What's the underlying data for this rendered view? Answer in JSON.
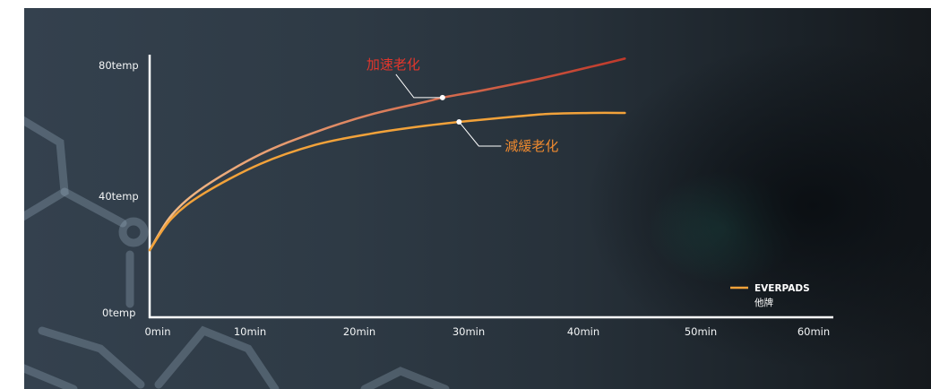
{
  "chart_data": {
    "type": "line",
    "x_ticks": [
      "0min",
      "10min",
      "20min",
      "30min",
      "40min",
      "50min",
      "60min"
    ],
    "y_ticks": [
      "0temp",
      "40temp",
      "80temp"
    ],
    "xlim": [
      0,
      60
    ],
    "ylim": [
      0,
      80
    ],
    "series": [
      {
        "name": "EVERPADS",
        "color": "#f2a23a",
        "x": [
          0,
          2,
          5,
          10,
          15,
          20,
          25,
          28,
          32,
          36,
          40,
          43
        ],
        "y": [
          21,
          31,
          39,
          48,
          54,
          57.5,
          60,
          61.2,
          62.5,
          63.7,
          64,
          64
        ]
      },
      {
        "name": "他牌",
        "color": "#c8473a",
        "x": [
          0,
          2,
          5,
          10,
          15,
          20,
          25,
          26.5,
          30,
          35,
          40,
          43
        ],
        "y": [
          21,
          32,
          41,
          51,
          58,
          63.5,
          67.5,
          68.8,
          71,
          74.5,
          78.5,
          81
        ]
      }
    ],
    "annotations": [
      {
        "text": "加速老化",
        "color": "#e2362c",
        "x": 26.5,
        "y": 68.8
      },
      {
        "text": "減緩老化",
        "color": "#ef8a2f",
        "x": 28,
        "y": 61.2
      }
    ],
    "legend": [
      "EVERPADS",
      "他牌"
    ],
    "legend_position": "bottom-right"
  }
}
